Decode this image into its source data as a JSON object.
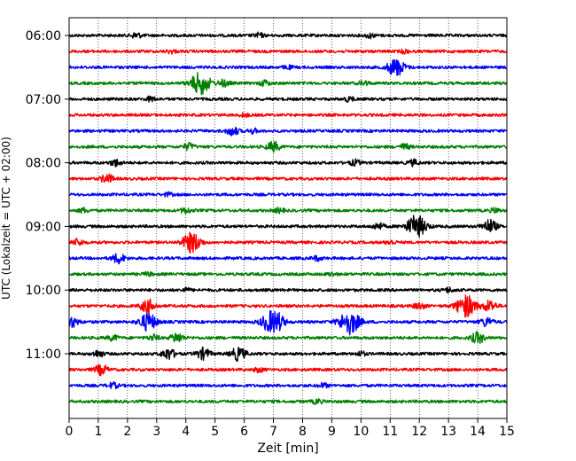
{
  "chart_data": {
    "type": "line",
    "subtype": "helicorder",
    "title": "",
    "xlabel": "Zeit  [min]",
    "ylabel": "UTC (Lokalzeit = UTC + 02:00)",
    "xlim": [
      0,
      15
    ],
    "x_ticks": [
      "0",
      "1",
      "2",
      "3",
      "4",
      "5",
      "6",
      "7",
      "8",
      "9",
      "10",
      "11",
      "12",
      "13",
      "14",
      "15"
    ],
    "grid": {
      "vertical": true,
      "style": "dotted"
    },
    "trace_interval_min": 15,
    "trace_colors": [
      "#000000",
      "#ff0000",
      "#0000ff",
      "#008000"
    ],
    "y_tick_labels": [
      {
        "label": "06:00",
        "trace": 0
      },
      {
        "label": "07:00",
        "trace": 4
      },
      {
        "label": "08:00",
        "trace": 8
      },
      {
        "label": "09:00",
        "trace": 12
      },
      {
        "label": "10:00",
        "trace": 16
      },
      {
        "label": "11:00",
        "trace": 20
      }
    ],
    "traces": [
      {
        "start": "06:00",
        "events": [
          [
            2.3,
            0.5
          ],
          [
            6.5,
            0.4
          ],
          [
            10.3,
            0.4
          ]
        ]
      },
      {
        "start": "06:15",
        "events": [
          [
            3.5,
            0.3
          ],
          [
            11.5,
            0.3
          ]
        ]
      },
      {
        "start": "06:30",
        "events": [
          [
            11.2,
            1.6
          ],
          [
            7.5,
            0.3
          ]
        ]
      },
      {
        "start": "06:45",
        "events": [
          [
            4.5,
            2.0
          ],
          [
            5.3,
            0.6
          ],
          [
            6.7,
            0.5
          ],
          [
            10.1,
            0.4
          ]
        ]
      },
      {
        "start": "07:00",
        "events": [
          [
            2.8,
            0.4
          ],
          [
            9.6,
            0.4
          ]
        ]
      },
      {
        "start": "07:15",
        "events": [
          [
            6.0,
            0.3
          ]
        ]
      },
      {
        "start": "07:30",
        "events": [
          [
            5.6,
            0.8
          ],
          [
            6.3,
            0.4
          ]
        ]
      },
      {
        "start": "07:45",
        "events": [
          [
            4.1,
            0.6
          ],
          [
            7.0,
            0.9
          ],
          [
            11.5,
            0.5
          ]
        ]
      },
      {
        "start": "08:00",
        "events": [
          [
            1.6,
            0.6
          ],
          [
            9.8,
            0.5
          ],
          [
            11.8,
            0.5
          ]
        ]
      },
      {
        "start": "08:15",
        "events": [
          [
            1.3,
            0.8
          ]
        ]
      },
      {
        "start": "08:30",
        "events": [
          [
            3.4,
            0.3
          ]
        ]
      },
      {
        "start": "08:45",
        "events": [
          [
            0.5,
            0.4
          ],
          [
            4.0,
            0.5
          ],
          [
            7.2,
            0.4
          ],
          [
            14.6,
            0.4
          ]
        ]
      },
      {
        "start": "09:00",
        "events": [
          [
            11.9,
            2.0
          ],
          [
            14.4,
            1.2
          ],
          [
            10.6,
            0.6
          ]
        ]
      },
      {
        "start": "09:15",
        "events": [
          [
            4.2,
            1.8
          ],
          [
            0.3,
            0.6
          ],
          [
            11.0,
            0.4
          ]
        ]
      },
      {
        "start": "09:30",
        "events": [
          [
            1.7,
            0.9
          ],
          [
            8.5,
            0.4
          ]
        ]
      },
      {
        "start": "09:45",
        "events": [
          [
            2.7,
            0.3
          ],
          [
            9.0,
            0.3
          ]
        ]
      },
      {
        "start": "10:00",
        "events": [
          [
            4.0,
            0.3
          ],
          [
            13.0,
            0.4
          ]
        ]
      },
      {
        "start": "10:15",
        "events": [
          [
            13.6,
            2.0
          ],
          [
            12.0,
            0.6
          ],
          [
            2.7,
            1.2
          ],
          [
            14.4,
            1.0
          ]
        ]
      },
      {
        "start": "10:30",
        "events": [
          [
            9.6,
            2.2
          ],
          [
            6.9,
            1.8
          ],
          [
            7.2,
            0.9
          ],
          [
            2.7,
            1.6
          ],
          [
            0.1,
            0.9
          ],
          [
            14.3,
            0.8
          ]
        ]
      },
      {
        "start": "10:45",
        "events": [
          [
            3.7,
            0.9
          ],
          [
            1.5,
            0.5
          ],
          [
            14.0,
            1.0
          ],
          [
            2.9,
            0.5
          ]
        ]
      },
      {
        "start": "11:00",
        "events": [
          [
            3.4,
            1.0
          ],
          [
            4.6,
            1.0
          ],
          [
            5.8,
            1.2
          ],
          [
            1.0,
            0.6
          ],
          [
            10.0,
            0.4
          ]
        ]
      },
      {
        "start": "11:15",
        "events": [
          [
            1.1,
            0.9
          ],
          [
            6.5,
            0.4
          ]
        ]
      },
      {
        "start": "11:30",
        "events": [
          [
            1.5,
            0.5
          ],
          [
            8.7,
            0.4
          ]
        ]
      },
      {
        "start": "11:45",
        "events": [
          [
            8.5,
            0.4
          ]
        ]
      }
    ]
  }
}
